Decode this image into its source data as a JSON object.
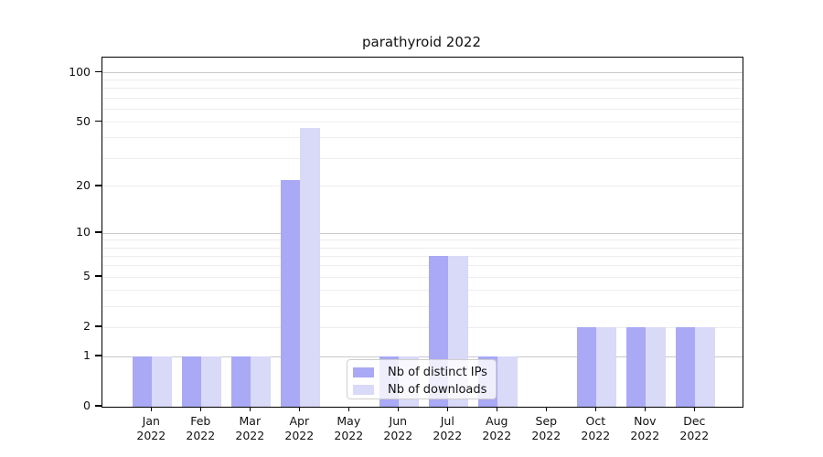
{
  "title": "parathyroid 2022",
  "chart_data": {
    "type": "bar",
    "title": "parathyroid 2022",
    "xlabel": "",
    "ylabel": "",
    "categories": [
      "Jan 2022",
      "Feb 2022",
      "Mar 2022",
      "Apr 2022",
      "May 2022",
      "Jun 2022",
      "Jul 2022",
      "Aug 2022",
      "Sep 2022",
      "Oct 2022",
      "Nov 2022",
      "Dec 2022"
    ],
    "series": [
      {
        "name": "Nb of distinct IPs",
        "color": "#a9a9f5",
        "values": [
          1,
          1,
          1,
          22,
          0,
          1,
          7,
          1,
          0,
          2,
          2,
          2
        ]
      },
      {
        "name": "Nb of downloads",
        "color": "#d9d9f8",
        "values": [
          1,
          1,
          1,
          46,
          0,
          1,
          7,
          1,
          0,
          2,
          2,
          2
        ]
      }
    ],
    "y_scale": "log10(1+y)",
    "ylim": [
      0,
      125
    ],
    "y_ticks": [
      0,
      1,
      2,
      5,
      10,
      20,
      50,
      100
    ],
    "y_major_gridlines": [
      1,
      10,
      100
    ],
    "y_minor_gridlines": [
      2,
      3,
      4,
      5,
      6,
      7,
      8,
      9,
      20,
      30,
      40,
      50,
      60,
      70,
      80,
      90
    ],
    "grid": "horizontal",
    "legend_position": "inside-bottom-center"
  },
  "colors": {
    "background": "#ffffff",
    "axis": "#000000",
    "text": "#111111",
    "major_gridline": "#c9c9c9",
    "minor_gridline": "#ededed",
    "legend_border": "#cfcfcf",
    "legend_background": "rgba(255,255,255,0.8)"
  }
}
